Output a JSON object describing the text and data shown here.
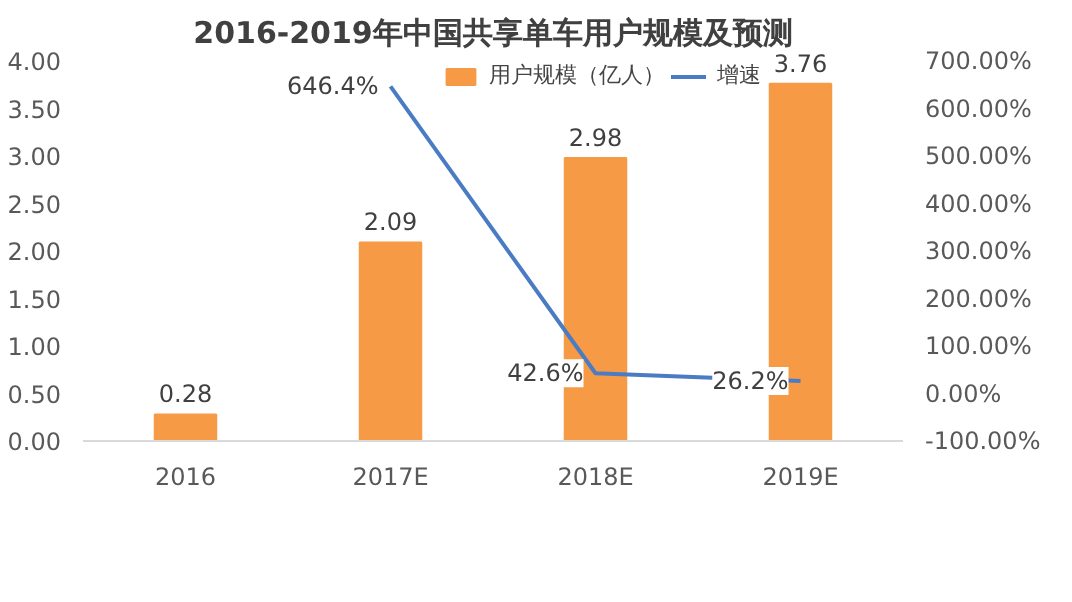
{
  "chart_data": {
    "type": "bar",
    "title": "2016-2019年中国共享单车用户规模及预测",
    "categories": [
      "2016",
      "2017E",
      "2018E",
      "2019E"
    ],
    "series": [
      {
        "name": "用户规模（亿人）",
        "color": "#f79a46",
        "values": [
          0.28,
          2.09,
          2.98,
          3.76
        ],
        "value_labels": [
          "0.28",
          "2.09",
          "2.98",
          "3.76"
        ]
      },
      {
        "name": "增速",
        "type": "line",
        "axis": "y2",
        "color": "#4a7cc4",
        "values": [
          null,
          646.4,
          42.6,
          26.2
        ],
        "value_labels": [
          null,
          "646.4%",
          "42.6%",
          "26.2%"
        ]
      }
    ],
    "ylim": [
      0,
      4
    ],
    "yticks": [
      {
        "value": 0,
        "label": "0.00"
      },
      {
        "value": 0.5,
        "label": "0.50"
      },
      {
        "value": 1,
        "label": "1.00"
      },
      {
        "value": 1.5,
        "label": "1.50"
      },
      {
        "value": 2,
        "label": "2.00"
      },
      {
        "value": 2.5,
        "label": "2.50"
      },
      {
        "value": 3,
        "label": "3.00"
      },
      {
        "value": 3.5,
        "label": "3.50"
      },
      {
        "value": 4,
        "label": "4.00"
      }
    ],
    "y2lim": [
      -100,
      700
    ],
    "y2ticks": [
      {
        "value": -100,
        "label": "-100.00%"
      },
      {
        "value": 0,
        "label": "0.00%"
      },
      {
        "value": 100,
        "label": "100.00%"
      },
      {
        "value": 200,
        "label": "200.00%"
      },
      {
        "value": 300,
        "label": "300.00%"
      },
      {
        "value": 400,
        "label": "400.00%"
      },
      {
        "value": 500,
        "label": "500.00%"
      },
      {
        "value": 600,
        "label": "600.00%"
      },
      {
        "value": 700,
        "label": "700.00%"
      }
    ],
    "legend": "top",
    "grid": false
  }
}
